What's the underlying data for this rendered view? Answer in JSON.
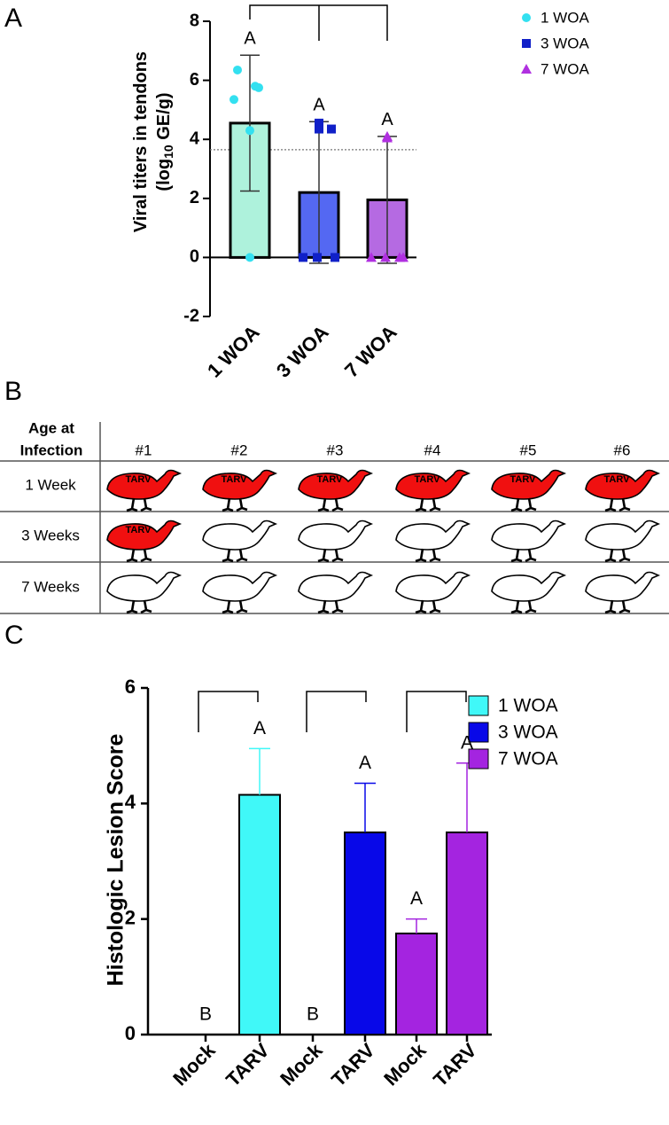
{
  "chart_data": [
    {
      "type": "bar",
      "panel": "A",
      "ylabel": [
        "Viral titers in tendons",
        "(log",
        "10",
        " GE/g)"
      ],
      "categories": [
        "1 WOA",
        "3 WOA",
        "7 WOA"
      ],
      "ylim": [
        -2,
        8
      ],
      "yticks": [
        -2,
        0,
        2,
        4,
        6,
        8
      ],
      "detection_limit": 3.65,
      "legend_position": "upper right",
      "series": [
        {
          "name": "1 WOA",
          "color": "#33e0f0",
          "marker": "circle",
          "bar_color": "#aef2dc",
          "value": 4.55,
          "error": 2.3,
          "letter": "A",
          "points": [
            6.35,
            5.8,
            5.35,
            5.75,
            4.3,
            0
          ]
        },
        {
          "name": "3 WOA",
          "color": "#1020c8",
          "marker": "square",
          "bar_color": "#5468f2",
          "value": 2.2,
          "error": 2.4,
          "letter": "A",
          "points": [
            4.55,
            4.35,
            4.35,
            0,
            0,
            0
          ]
        },
        {
          "name": "7 WOA",
          "color": "#b030e0",
          "marker": "triangle",
          "bar_color": "#b56ae2",
          "value": 1.95,
          "error": 2.15,
          "letter": "A",
          "points": [
            4.1,
            4.05,
            0,
            0,
            0,
            0
          ]
        }
      ]
    },
    {
      "type": "bar",
      "panel": "C",
      "ylabel": "Histologic Lesion Score",
      "categories": [
        "Mock",
        "TARV",
        "Mock",
        "TARV",
        "Mock",
        "TARV"
      ],
      "ylim": [
        0,
        6
      ],
      "yticks": [
        0,
        2,
        4,
        6
      ],
      "legend_position": "upper right",
      "series": [
        {
          "name": "1 WOA",
          "color": "#40f8f8",
          "values": [
            0,
            4.15,
            null,
            null,
            null,
            null
          ],
          "errors": [
            0,
            0.8,
            null,
            null,
            null,
            null
          ],
          "letters": [
            "B",
            "A",
            null,
            null,
            null,
            null
          ]
        },
        {
          "name": "3 WOA",
          "color": "#0808e8",
          "values": [
            null,
            null,
            0,
            3.5,
            null,
            null
          ],
          "errors": [
            null,
            null,
            0,
            0.85,
            null,
            null
          ],
          "letters": [
            null,
            null,
            "B",
            "A",
            null,
            null
          ]
        },
        {
          "name": "7 WOA",
          "color": "#a424e0",
          "values": [
            null,
            null,
            null,
            null,
            1.75,
            3.5
          ],
          "errors": [
            null,
            null,
            null,
            null,
            0.25,
            1.2
          ],
          "letters": [
            null,
            null,
            null,
            null,
            "A",
            "A"
          ]
        }
      ]
    }
  ],
  "table": {
    "panel": "B",
    "header": [
      "Age at",
      "Infection"
    ],
    "columns": [
      "#1",
      "#2",
      "#3",
      "#4",
      "#5",
      "#6"
    ],
    "rows": [
      {
        "label": "1 Week",
        "cells": [
          "TARV",
          "TARV",
          "TARV",
          "TARV",
          "TARV",
          "TARV"
        ]
      },
      {
        "label": "3 Weeks",
        "cells": [
          "TARV",
          null,
          null,
          null,
          null,
          null
        ]
      },
      {
        "label": "7 Weeks",
        "cells": [
          null,
          null,
          null,
          null,
          null,
          null
        ]
      }
    ]
  }
}
